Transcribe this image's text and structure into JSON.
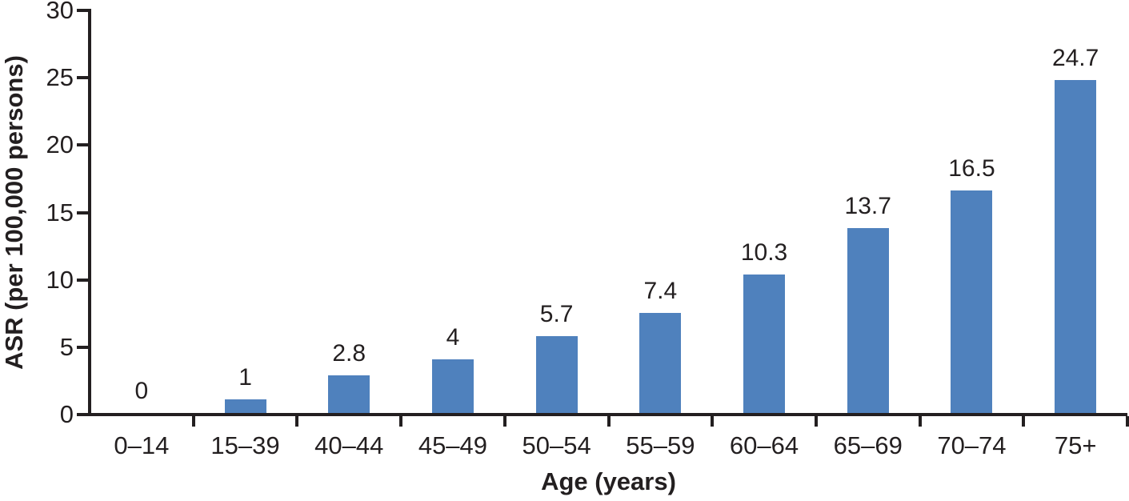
{
  "chart_data": {
    "type": "bar",
    "categories": [
      "0–14",
      "15–39",
      "40–44",
      "45–49",
      "50–54",
      "55–59",
      "60–64",
      "65–69",
      "70–74",
      "75+"
    ],
    "values": [
      0,
      1,
      2.8,
      4,
      5.7,
      7.4,
      10.3,
      13.7,
      16.5,
      24.7
    ],
    "value_labels": [
      "0",
      "1",
      "2.8",
      "4",
      "5.7",
      "7.4",
      "10.3",
      "13.7",
      "16.5",
      "24.7"
    ],
    "title": "",
    "xlabel": "Age (years)",
    "ylabel": "ASR (per 100,000 persons)",
    "ylim": [
      0,
      30
    ],
    "yticks": [
      0,
      5,
      10,
      15,
      20,
      25,
      30
    ],
    "grid": false,
    "legend": null,
    "bar_color": "#4F81BD",
    "axis_color": "#231F20",
    "text_color": "#231F20",
    "background_color": "#FFFFFF"
  }
}
